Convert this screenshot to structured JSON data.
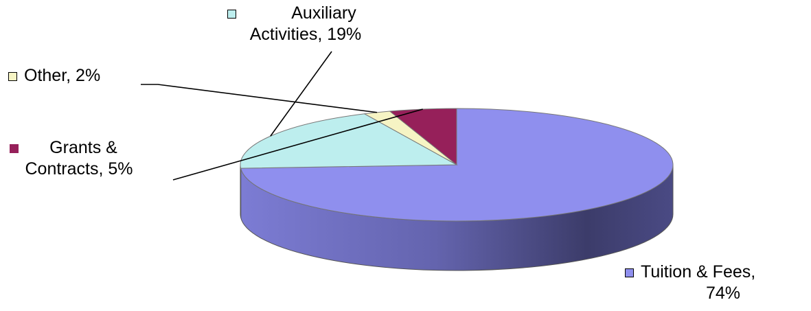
{
  "chart_data": {
    "type": "pie",
    "title": "",
    "slices": [
      {
        "name": "Tuition & Fees",
        "value": 74,
        "label": "Tuition & Fees, 74%",
        "label_lines": [
          "Tuition & Fees,",
          "74%"
        ],
        "color": "#8f8fee",
        "side_color": "#7474c8"
      },
      {
        "name": "Auxiliary Activities",
        "value": 19,
        "label": "Auxiliary Activities, 19%",
        "label_lines": [
          "Auxiliary",
          "Activities, 19%"
        ],
        "color": "#bdeeee",
        "side_color": "#9ccaca"
      },
      {
        "name": "Other",
        "value": 2,
        "label": "Other, 2%",
        "label_lines": [
          "Other, 2%"
        ],
        "color": "#f6f4c4",
        "side_color": "#d6d4a4"
      },
      {
        "name": "Grants & Contracts",
        "value": 5,
        "label": "Grants & Contracts, 5%",
        "label_lines": [
          "Grants &",
          "Contracts, 5%"
        ],
        "color": "#96205a",
        "side_color": "#6a1640"
      }
    ],
    "style": "3d",
    "legend": "none"
  }
}
